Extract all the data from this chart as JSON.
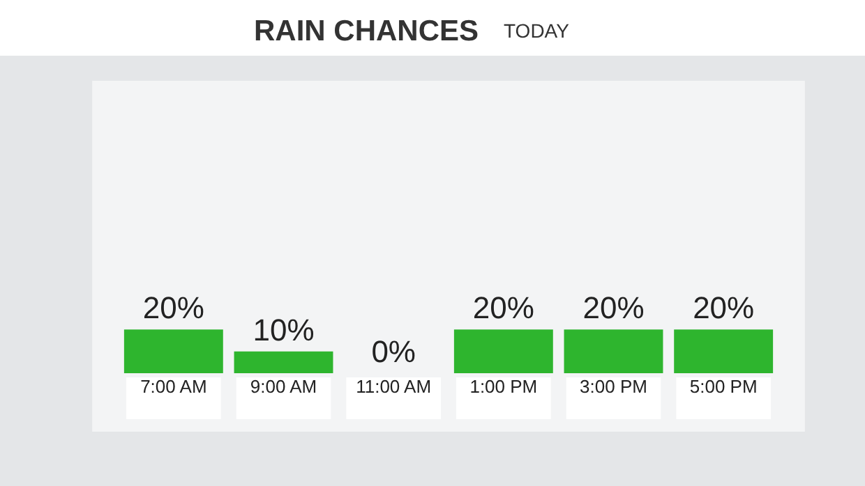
{
  "chart_data": {
    "type": "bar",
    "title": "RAIN CHANCES",
    "subtitle": "TODAY",
    "categories": [
      "7:00 AM",
      "9:00 AM",
      "11:00 AM",
      "1:00 PM",
      "3:00 PM",
      "5:00 PM"
    ],
    "values": [
      20,
      10,
      0,
      20,
      20,
      20
    ],
    "value_labels": [
      "20%",
      "10%",
      "0%",
      "20%",
      "20%",
      "20%"
    ],
    "color": "#2eb52e",
    "tick_labels": "x",
    "grid": false,
    "legend": false
  }
}
